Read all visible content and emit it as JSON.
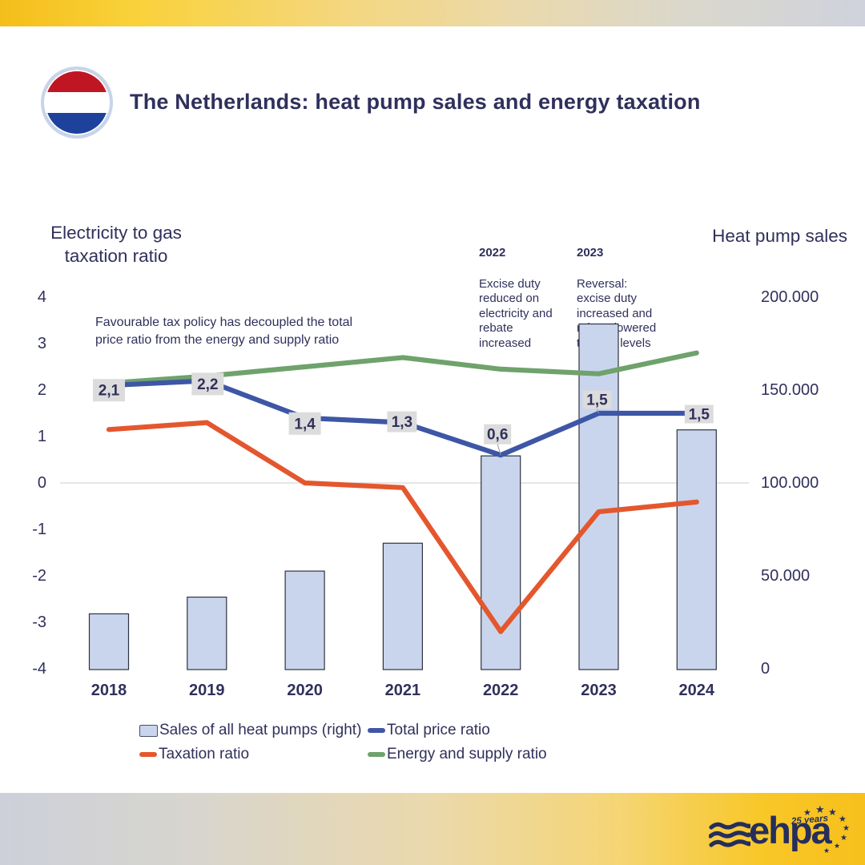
{
  "header": {
    "title": "The Netherlands: heat pump sales and energy taxation",
    "flag_colors": {
      "red": "#C01623",
      "white": "#FFFFFF",
      "blue": "#1E429B",
      "ring": "#C8D4EA"
    }
  },
  "chart_data": {
    "type": "combo-bar-line",
    "categories": [
      "2018",
      "2019",
      "2020",
      "2021",
      "2022",
      "2023",
      "2024"
    ],
    "left_axis": {
      "title": "Electricity to gas\ntaxation ratio",
      "ticks": [
        "4",
        "3",
        "2",
        "1",
        "0",
        "-1",
        "-2",
        "-3",
        "-4"
      ],
      "range": [
        -4,
        4
      ]
    },
    "right_axis": {
      "title": "Heat pump sales",
      "ticks": [
        "200.000",
        "150.000",
        "100.000",
        "50.000",
        "0"
      ],
      "range": [
        0,
        200000
      ]
    },
    "grid": "single gridline at left-axis 0 / right-axis 100.000",
    "series": [
      {
        "name": "Sales of all heat pumps (right)",
        "type": "bar",
        "axis": "right",
        "color": "#C9D5EC",
        "border_color": "#2E3340",
        "values": [
          30000,
          39000,
          53000,
          68000,
          115000,
          186000,
          129000
        ]
      },
      {
        "name": "Total price ratio",
        "type": "line",
        "axis": "left",
        "color": "#3D56A6",
        "values": [
          2.1,
          2.2,
          1.4,
          1.3,
          0.6,
          1.5,
          1.5
        ],
        "labels": [
          "2,1",
          "2,2",
          "1,4",
          "1,3",
          "0,6",
          "1,5",
          "1,5"
        ],
        "label_box_color": "#DCDCDC"
      },
      {
        "name": "Taxation ratio",
        "type": "line",
        "axis": "left",
        "color": "#E4572E",
        "values": [
          1.15,
          1.3,
          0.0,
          -0.1,
          -3.2,
          -0.62,
          -0.41
        ]
      },
      {
        "name": "Energy and supply ratio",
        "type": "line",
        "axis": "left",
        "color": "#6FA26C",
        "values": [
          2.15,
          2.3,
          2.5,
          2.7,
          2.45,
          2.35,
          2.8
        ]
      }
    ],
    "annotations": [
      {
        "year": "2022",
        "text": "Excise duty\nreduced on\nelectricity and\nrebate\nincreased"
      },
      {
        "year": "2023",
        "text": "Reversal:\nexcise duty\nincreased and\nrebate lowered\nto 2021 levels"
      }
    ],
    "note": "Favourable tax policy has decoupled the total\nprice ratio from the energy and supply ratio"
  },
  "legend": {
    "items": [
      {
        "label": "Sales of all heat pumps (right)",
        "swatch": "bar"
      },
      {
        "label": "Total price ratio",
        "swatch": "line"
      },
      {
        "label": "Taxation ratio",
        "swatch": "line"
      },
      {
        "label": "Energy and supply ratio",
        "swatch": "line"
      }
    ]
  },
  "footer": {
    "logo": {
      "brand": "ehpa",
      "anniversary": "25 years",
      "star_glyph": "★",
      "wave_icon": "three-waves"
    }
  }
}
